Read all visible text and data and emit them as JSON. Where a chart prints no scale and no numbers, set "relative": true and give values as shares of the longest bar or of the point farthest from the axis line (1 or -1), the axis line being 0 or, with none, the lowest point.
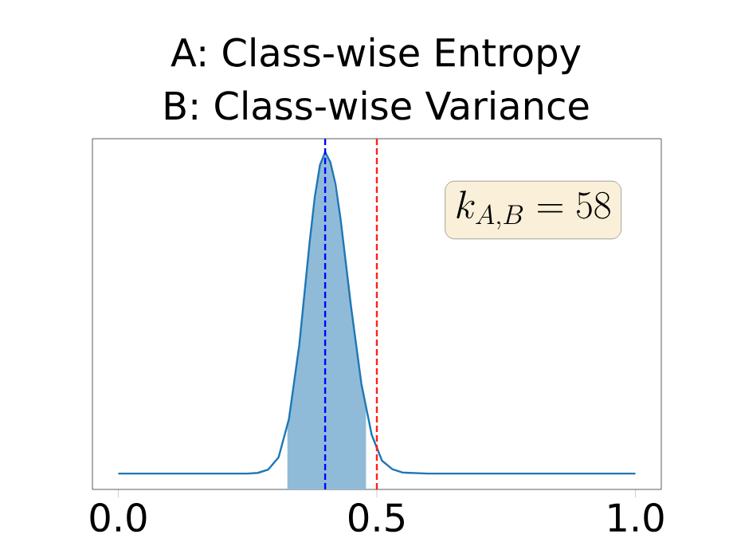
{
  "chart_data": {
    "type": "line",
    "title": "A: Class-wise Entropy",
    "subtitle": "B: Class-wise Variance",
    "relative": true,
    "xlim": [
      -0.05,
      1.05
    ],
    "xticks": [
      {
        "value": 0,
        "label": "0.0"
      },
      {
        "value": 0.5,
        "label": "0.5"
      },
      {
        "value": 1,
        "label": "1.0"
      }
    ],
    "series": [
      {
        "type": "area",
        "color": "#8fbbd9",
        "x": [
          0.327,
          0.35,
          0.37,
          0.39,
          0.4,
          0.41,
          0.43,
          0.45,
          0.47,
          0.479
        ],
        "values": [
          0.181,
          0.428,
          0.733,
          0.962,
          1,
          0.971,
          0.8,
          0.543,
          0.314,
          0.238
        ]
      },
      {
        "color": "#1f77b4",
        "x": [
          0,
          0.1,
          0.2,
          0.25,
          0.27,
          0.29,
          0.31,
          0.33,
          0.35,
          0.37,
          0.38,
          0.39,
          0.4,
          0.41,
          0.42,
          0.43,
          0.45,
          0.47,
          0.49,
          0.51,
          0.53,
          0.55,
          0.6,
          0.7,
          0.8,
          0.9,
          1
        ],
        "values": [
          0.047,
          0.047,
          0.047,
          0.047,
          0.049,
          0.059,
          0.095,
          0.209,
          0.428,
          0.733,
          0.867,
          0.962,
          1,
          0.971,
          0.905,
          0.8,
          0.543,
          0.314,
          0.162,
          0.085,
          0.06,
          0.05,
          0.047,
          0.047,
          0.047,
          0.047,
          0.047
        ]
      }
    ],
    "ref_lines": [
      {
        "axis": "x",
        "value": 0.4,
        "color": "#0000ff",
        "line_style": "dashed"
      },
      {
        "axis": "x",
        "value": 0.5,
        "color": "#ff2020",
        "line_style": "dashed"
      }
    ],
    "annotations": [
      "k_{A,B} = 58"
    ]
  }
}
